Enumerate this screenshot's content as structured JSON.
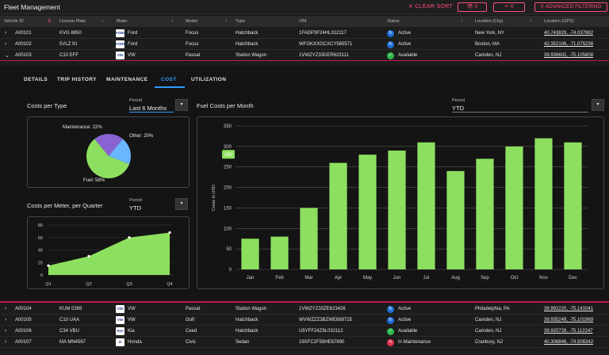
{
  "app": {
    "title": "Fleet Management"
  },
  "toolbar": {
    "clear_sort": "✕ CLEAR SORT",
    "eye_count": "0",
    "tools_count": "0",
    "advanced": "ADVANCED FILTERING"
  },
  "columns": [
    "Vehicle ID",
    "License Plate",
    "Make",
    "Model",
    "Type",
    "VIN",
    "Status",
    "Location (City)",
    "Location (GPS)"
  ],
  "rows_top": [
    {
      "id": "A00101",
      "plate": "KVG 8850",
      "make": "Ford",
      "logo": "FORD",
      "model": "Focus",
      "type": "Hatchback",
      "vin": "1FADP3F24HL312117",
      "status": "Active",
      "status_icon": "↻",
      "city": "New York, NY",
      "gps": "40.743829, -74.037982",
      "chev": "›"
    },
    {
      "id": "A00102",
      "plate": "5VLZ 91",
      "make": "Ford",
      "logo": "FORD",
      "model": "Focus",
      "type": "Hatchback",
      "vin": "WFOKXXGCXCY565571",
      "status": "Active",
      "status_icon": "↻",
      "city": "Boston, MA",
      "gps": "42.352106, -71.075238",
      "chev": "›"
    },
    {
      "id": "A00103",
      "plate": "C10 EFF",
      "make": "VW",
      "logo": "VW",
      "model": "Passat",
      "type": "Station Wagon",
      "vin": "1VWZYZ33DER623111",
      "status": "Available",
      "status_icon": "✓",
      "city": "Camden, NJ",
      "gps": "39.936602, -75.105808",
      "chev": "⌄"
    }
  ],
  "rows_bottom": [
    {
      "id": "A00104",
      "plate": "KUM 0269",
      "make": "VW",
      "logo": "VW",
      "model": "Passat",
      "type": "Station Wagon",
      "vin": "1VWZYZ33ZE623426",
      "status": "Active",
      "status_icon": "↻",
      "city": "Philadelphia, PA",
      "gps": "39.992220, -75.141041"
    },
    {
      "id": "A00105",
      "plate": "C10 UAA",
      "make": "VW",
      "logo": "VW",
      "model": "Golf",
      "type": "Hatchback",
      "vin": "WVWZZZ3BZWE689725",
      "status": "Active",
      "status_icon": "↻",
      "city": "Camden, NJ",
      "gps": "39.935249, -75.101969"
    },
    {
      "id": "A00106",
      "plate": "C34 VBU",
      "make": "Kia",
      "logo": "KIA",
      "model": "Ceed",
      "type": "Hatchback",
      "vin": "U5YFF24Z9L032112",
      "status": "Available",
      "status_icon": "✓",
      "city": "Camden, NJ",
      "gps": "39.920728, -75.112247"
    },
    {
      "id": "A00107",
      "plate": "MA MN4567",
      "make": "Honda",
      "logo": "H",
      "model": "Civic",
      "type": "Sedan",
      "vin": "19XFC2F59HE67890",
      "status": "In Maintenance",
      "status_icon": "✎",
      "city": "Cranbury, NJ",
      "gps": "40.306846, -74.506342"
    }
  ],
  "status_colors": {
    "Active": "#1e6fd9",
    "Available": "#2eb84b",
    "In Maintenance": "#e0334f"
  },
  "tabs": [
    "DETAILS",
    "TRIP HISTORY",
    "MAINTENANCE",
    "COST",
    "UTILIZATION"
  ],
  "cost_type": {
    "title": "Costs per Type",
    "period_label": "Period",
    "period_value": "Last 6 Months"
  },
  "cost_meter": {
    "title": "Costs per Meter, per Quarter",
    "period_label": "Period",
    "period_value": "YTD"
  },
  "fuel": {
    "title": "Fuel Costs per Month",
    "period_label": "Period",
    "period_value": "YTD"
  },
  "chart_data": [
    {
      "type": "pie",
      "title": "Costs per Type",
      "labels": [
        "Maintenance: 22%",
        "Other: 20%",
        "Fuel: 58%"
      ],
      "values": [
        22,
        20,
        58
      ],
      "colors": [
        "#8a63d2",
        "#6ab7ff",
        "#8de05f"
      ]
    },
    {
      "type": "area",
      "title": "Costs per Meter, per Quarter",
      "categories": [
        "Q1",
        "Q2",
        "Q3",
        "Q4"
      ],
      "values": [
        15,
        30,
        60,
        68
      ],
      "ylim": [
        0,
        80
      ],
      "yticks": [
        "0",
        "20",
        "40",
        "60",
        "80"
      ]
    },
    {
      "type": "bar",
      "title": "Fuel Costs per Month",
      "categories": [
        "Jan",
        "Feb",
        "Mar",
        "Apr",
        "May",
        "Jun",
        "Jul",
        "Aug",
        "Sep",
        "Oct",
        "Nov",
        "Dec"
      ],
      "values": [
        75,
        80,
        150,
        260,
        280,
        290,
        310,
        240,
        270,
        300,
        320,
        310
      ],
      "ylabel": "Costs in USD",
      "ylim": [
        0,
        350
      ],
      "yticks": [
        "0",
        "50",
        "100",
        "150",
        "200",
        "250",
        "300",
        "350"
      ],
      "tooltip": "280"
    }
  ]
}
